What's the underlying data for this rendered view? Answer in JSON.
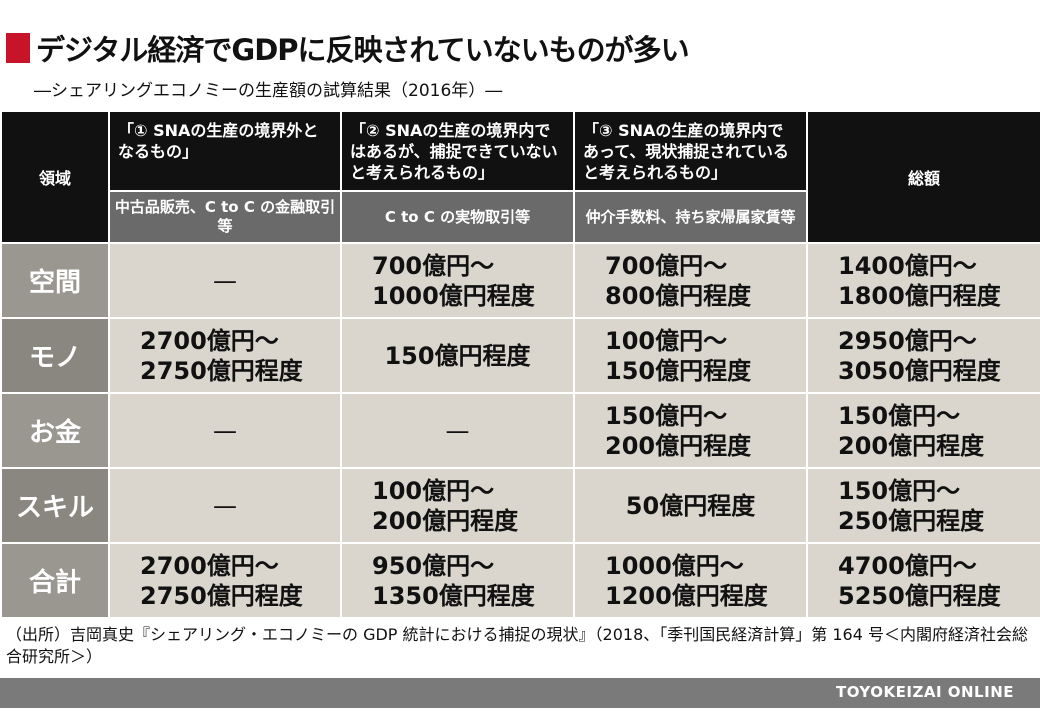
{
  "title": "デジタル経済でGDPに反映されていないものが多い",
  "subtitle": "―シェアリングエコノミーの生産額の試算結果（2016年）―",
  "table": {
    "col_label": "領域",
    "headers": [
      {
        "text": "「① SNAの生産の境界外となるもの」",
        "sub": "中古品販売、C to C の金融取引等"
      },
      {
        "text": "「② SNAの生産の境界内ではあるが、捕捉できていないと考えられるもの」",
        "sub": "C to C の実物取引等"
      },
      {
        "text": "「③ SNAの生産の境界内であって、現状捕捉されていると考えられるもの」",
        "sub": "仲介手数料、持ち家帰属家賃等"
      }
    ],
    "total_label": "総額",
    "rows": [
      {
        "label": "空間",
        "c1": [
          "—"
        ],
        "c2": [
          "700億円～",
          "1000億円程度"
        ],
        "c3": [
          "700億円～",
          "800億円程度"
        ],
        "c4": [
          "1400億円～",
          "1800億円程度"
        ]
      },
      {
        "label": "モノ",
        "c1": [
          "2700億円～",
          "2750億円程度"
        ],
        "c2": [
          "150億円程度"
        ],
        "c3": [
          "100億円～",
          "150億円程度"
        ],
        "c4": [
          "2950億円～",
          "3050億円程度"
        ]
      },
      {
        "label": "お金",
        "c1": [
          "—"
        ],
        "c2": [
          "—"
        ],
        "c3": [
          "150億円～",
          "200億円程度"
        ],
        "c4": [
          "150億円～",
          "200億円程度"
        ]
      },
      {
        "label": "スキル",
        "c1": [
          "—"
        ],
        "c2": [
          "100億円～",
          "200億円程度"
        ],
        "c3": [
          "50億円程度"
        ],
        "c4": [
          "150億円～",
          "250億円程度"
        ]
      },
      {
        "label": "合計",
        "c1": [
          "2700億円～",
          "2750億円程度"
        ],
        "c2": [
          "950億円～",
          "1350億円程度"
        ],
        "c3": [
          "1000億円～",
          "1200億円程度"
        ],
        "c4": [
          "4700億円～",
          "5250億円程度"
        ]
      }
    ]
  },
  "source": "（出所）吉岡真史『シェアリング・エコノミーの GDP 統計における捕捉の現状』（2018、「季刊国民経済計算」第 164 号＜内閣府経済社会総合研究所＞）",
  "footer": "TOYOKEIZAI  ONLINE",
  "colors": {
    "accent": "#c81428",
    "header_black": "#111111",
    "header_gray": "#6a6a6a",
    "cell_bg": "#dad6ce",
    "footer_bg": "#7a7a7a"
  }
}
